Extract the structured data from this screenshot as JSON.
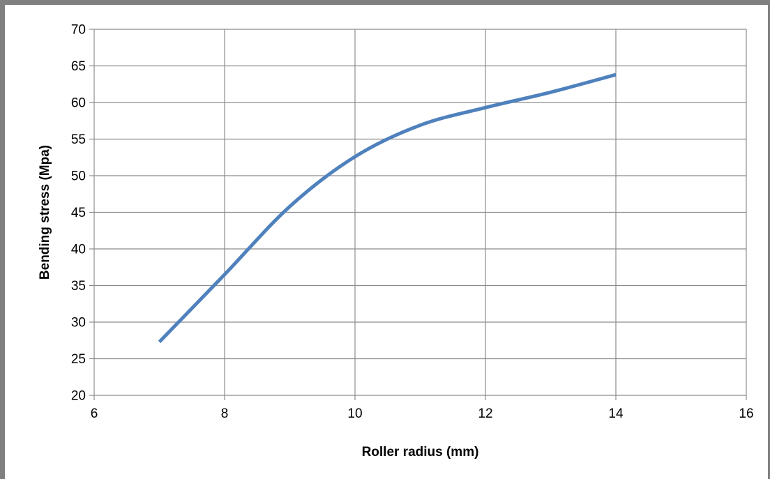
{
  "chart_data": {
    "type": "line",
    "title": "",
    "xlabel": "Roller radius (mm)",
    "ylabel": "Bending stress (Mpa)",
    "xlim": [
      6,
      16
    ],
    "ylim": [
      20,
      70
    ],
    "xticks": [
      6,
      8,
      10,
      12,
      14,
      16
    ],
    "yticks": [
      20,
      25,
      30,
      35,
      40,
      45,
      50,
      55,
      60,
      65,
      70
    ],
    "grid": true,
    "legend": "none",
    "series": [
      {
        "color": "#4f81bd",
        "smooth": true,
        "x": [
          7,
          8,
          9,
          10,
          11,
          12,
          13,
          14
        ],
        "y": [
          27.3,
          36.5,
          45.8,
          52.6,
          56.9,
          59.3,
          61.4,
          63.8
        ]
      }
    ]
  }
}
